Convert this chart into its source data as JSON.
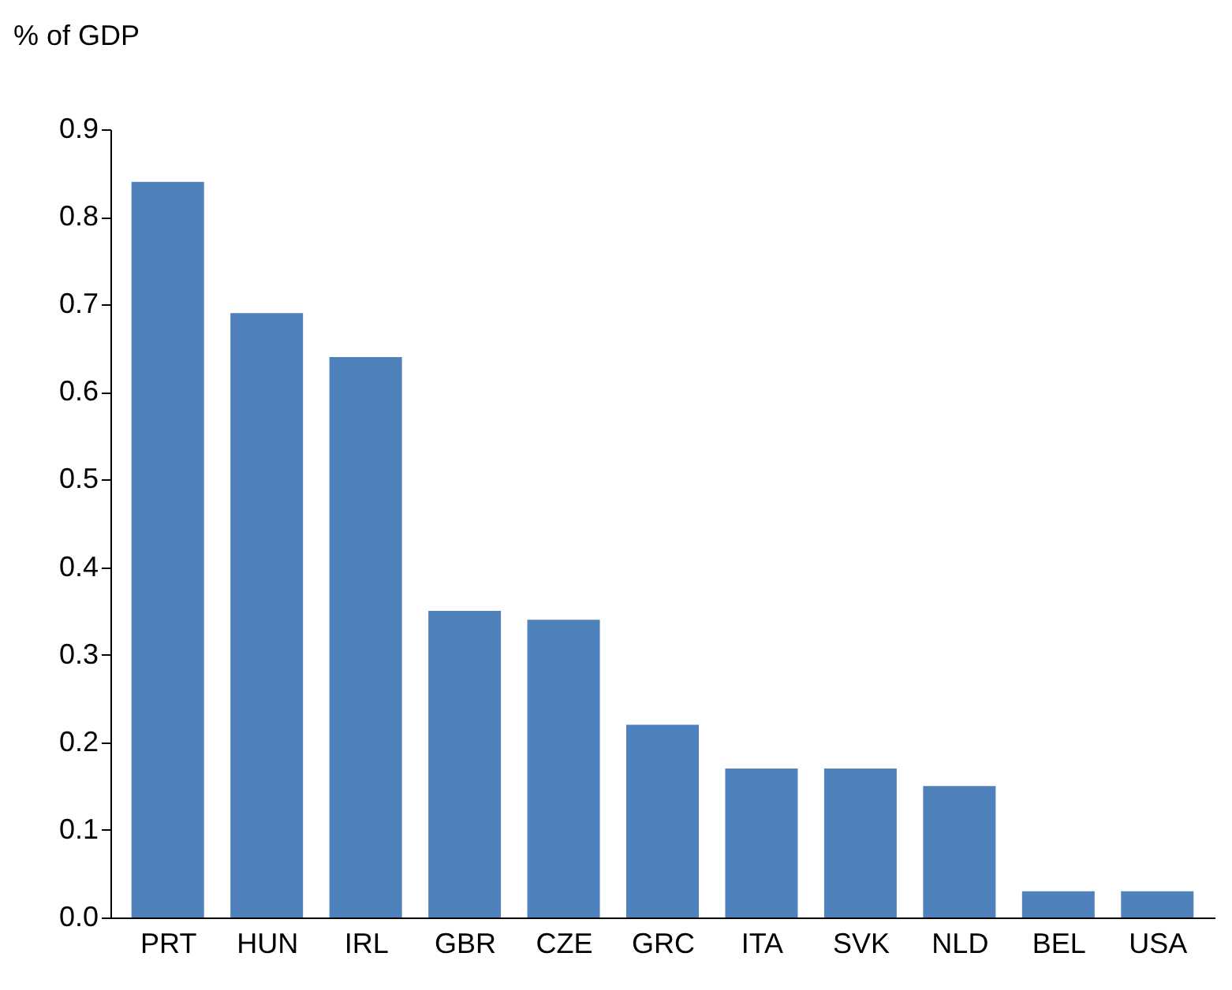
{
  "chart_data": {
    "type": "bar",
    "ylabel": "% of GDP",
    "categories": [
      "PRT",
      "HUN",
      "IRL",
      "GBR",
      "CZE",
      "GRC",
      "ITA",
      "SVK",
      "NLD",
      "BEL",
      "USA"
    ],
    "values": [
      0.84,
      0.69,
      0.64,
      0.35,
      0.34,
      0.22,
      0.17,
      0.17,
      0.15,
      0.03,
      0.03
    ],
    "color": "#4f81bd",
    "ylim": [
      0,
      0.9
    ],
    "yticks": [
      {
        "value": 0,
        "label": "0.0"
      },
      0.1,
      0.2,
      0.3,
      0.4,
      0.5,
      0.6,
      0.7,
      0.8,
      0.9
    ],
    "grid": false
  }
}
